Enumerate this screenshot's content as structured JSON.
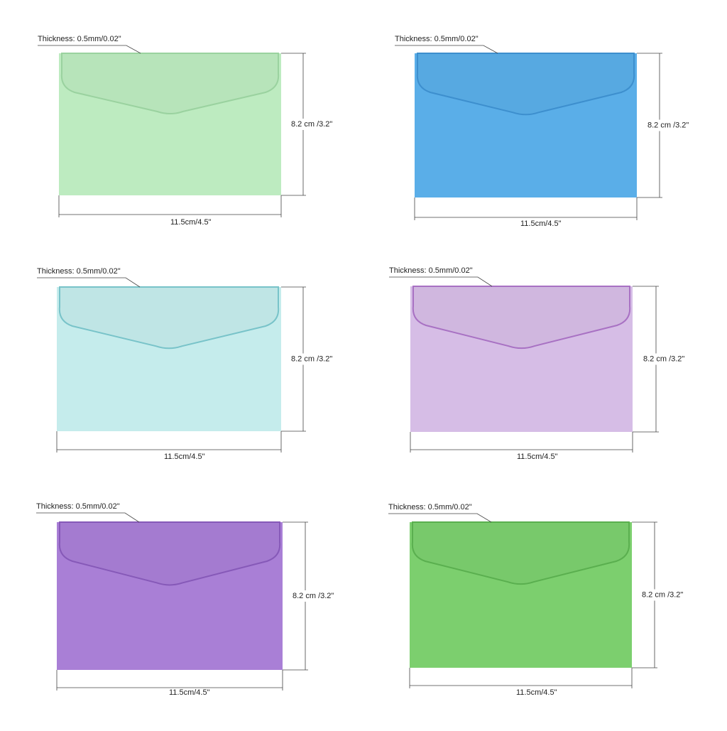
{
  "envelopes": [
    {
      "thickness": "Thickness: 0.5mm/0.02\"",
      "height": "8.2 cm /3.2\"",
      "width": "11.5cm/4.5\""
    },
    {
      "thickness": "Thickness: 0.5mm/0.02\"",
      "height": "8.2 cm /3.2\"",
      "width": "11.5cm/4.5\""
    },
    {
      "thickness": "Thickness: 0.5mm/0.02\"",
      "height": "8.2 cm /3.2\"",
      "width": "11.5cm/4.5\""
    },
    {
      "thickness": "Thickness: 0.5mm/0.02\"",
      "height": "8.2 cm /3.2\"",
      "width": "11.5cm/4.5\""
    },
    {
      "thickness": "Thickness: 0.5mm/0.02\"",
      "height": "8.2 cm /3.2\"",
      "width": "11.5cm/4.5\""
    },
    {
      "thickness": "Thickness: 0.5mm/0.02\"",
      "height": "8.2 cm /3.2\"",
      "width": "11.5cm/4.5\""
    }
  ]
}
